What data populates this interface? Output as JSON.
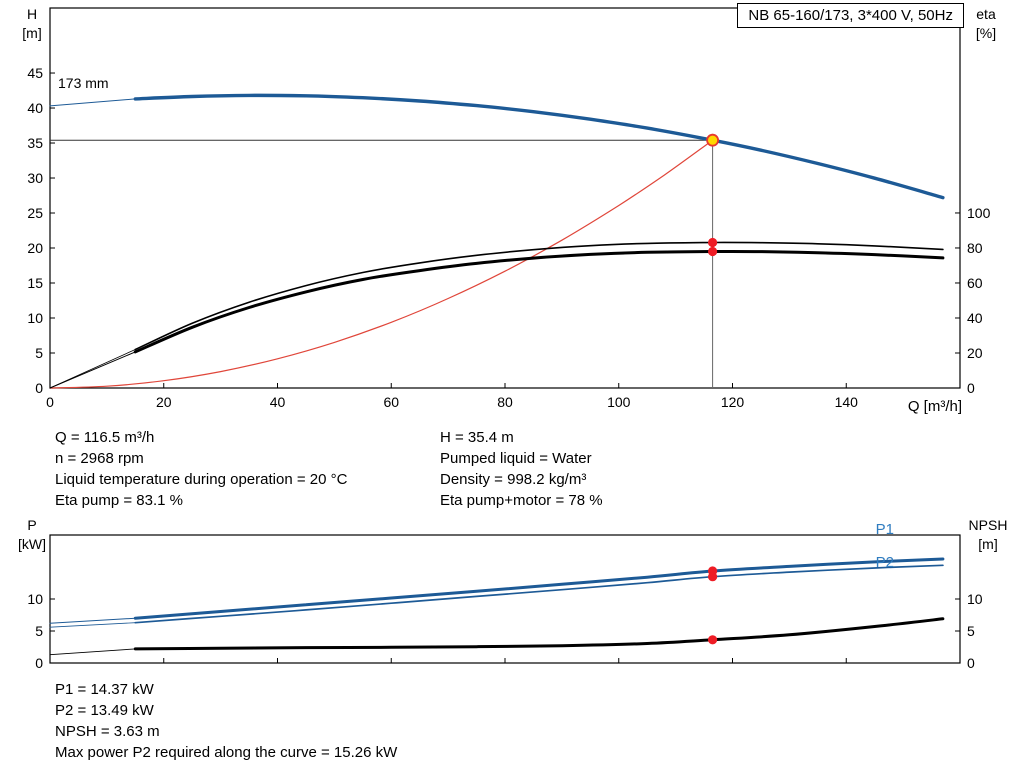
{
  "header": {
    "title_box": "NB 65-160/173, 3*400 V, 50Hz"
  },
  "axes_labels": {
    "h": "H",
    "h_unit": "[m]",
    "eta": "eta",
    "eta_unit": "[%]",
    "p": "P",
    "p_unit": "[kW]",
    "npsh": "NPSH",
    "npsh_unit": "[m]",
    "q_axis": "Q [m³/h]"
  },
  "curve_labels": {
    "impeller": "173 mm",
    "p1": "P1",
    "p2": "P2"
  },
  "info": {
    "left": [
      "Q = 116.5 m³/h",
      "n = 2968 rpm",
      "Liquid temperature during operation = 20 °C",
      "Eta pump = 83.1 %"
    ],
    "right": [
      "H = 35.4 m",
      "Pumped liquid = Water",
      "Density = 998.2 kg/m³",
      "Eta pump+motor = 78 %"
    ]
  },
  "results": [
    "P1 = 14.37 kW",
    "P2 = 13.49 kW",
    "NPSH = 3.63 m",
    "Max power P2 required along the curve = 15.26 kW"
  ],
  "colors": {
    "curve_blue": "#1d5a96",
    "label_blue": "#2f7cc0",
    "marker_red": "#ee1c25",
    "system_red": "#e0463a",
    "duty_yellow": "#ffd800"
  },
  "chart_data": [
    {
      "type": "line",
      "title": "NB 65-160/173, 3*400 V, 50Hz",
      "xlabel": "Q [m³/h]",
      "x_range": [
        0,
        160
      ],
      "x_ticks": [
        0,
        20,
        40,
        60,
        80,
        100,
        120,
        140
      ],
      "left_axis": {
        "label": "H [m]",
        "range": [
          0,
          54.29
        ],
        "ticks": [
          0,
          5,
          10,
          15,
          20,
          25,
          30,
          35,
          40,
          45
        ]
      },
      "right_axis": {
        "label": "eta [%]",
        "range": [
          0,
          217.1
        ],
        "ticks": [
          0,
          20,
          40,
          60,
          80,
          100
        ]
      },
      "duty_point": {
        "q": 116.5,
        "h": 35.4,
        "eta_pump": 83.1,
        "eta_pump_motor": 78
      },
      "guides": [
        {
          "name": "duty-head-guide-line",
          "axis": "left",
          "color": "#333333",
          "width": 1,
          "points": [
            [
              0,
              35.4
            ],
            [
              116.5,
              35.4
            ]
          ]
        },
        {
          "name": "duty-flow-guide-line",
          "axis": "left",
          "color": "#666666",
          "width": 1,
          "points": [
            [
              116.5,
              0
            ],
            [
              116.5,
              36.3
            ]
          ]
        }
      ],
      "series": [
        {
          "name": "pump-curve-lead",
          "axis": "left",
          "color": "#1d5a96",
          "width": 1,
          "smooth": false,
          "points": [
            [
              0,
              40.3
            ],
            [
              15,
              41.3
            ]
          ]
        },
        {
          "name": "pump-curve-173mm",
          "axis": "left",
          "color": "#1d5a96",
          "width": 3.4,
          "smooth": true,
          "points": [
            [
              15,
              41.3
            ],
            [
              25,
              41.65
            ],
            [
              35,
              41.8
            ],
            [
              45,
              41.74
            ],
            [
              55,
              41.47
            ],
            [
              65,
              41.0
            ],
            [
              75,
              40.34
            ],
            [
              85,
              39.47
            ],
            [
              95,
              38.4
            ],
            [
              105,
              37.13
            ],
            [
              116.5,
              35.4
            ],
            [
              125,
              33.97
            ],
            [
              135,
              32.07
            ],
            [
              145,
              29.98
            ],
            [
              157,
              27.2
            ]
          ]
        },
        {
          "name": "system-curve",
          "axis": "left",
          "color": "#e0463a",
          "width": 1.2,
          "smooth": true,
          "points": [
            [
              0,
              0
            ],
            [
              10,
              0.26
            ],
            [
              20,
              1.04
            ],
            [
              30,
              2.35
            ],
            [
              40,
              4.17
            ],
            [
              50,
              6.52
            ],
            [
              60,
              9.39
            ],
            [
              70,
              12.78
            ],
            [
              80,
              16.69
            ],
            [
              90,
              21.12
            ],
            [
              100,
              26.08
            ],
            [
              108,
              30.42
            ],
            [
              116.5,
              35.4
            ]
          ]
        },
        {
          "name": "eta-pump-lead",
          "axis": "right",
          "color": "#000000",
          "width": 0.8,
          "smooth": false,
          "points": [
            [
              0,
              0
            ],
            [
              15,
              22
            ]
          ]
        },
        {
          "name": "eta-pump-curve",
          "axis": "right",
          "color": "#000000",
          "width": 1.6,
          "smooth": true,
          "points": [
            [
              15,
              22
            ],
            [
              25,
              37
            ],
            [
              35,
              49
            ],
            [
              45,
              58.5
            ],
            [
              55,
              66
            ],
            [
              65,
              71.5
            ],
            [
              75,
              75.8
            ],
            [
              85,
              79
            ],
            [
              95,
              81.3
            ],
            [
              105,
              82.6
            ],
            [
              116.5,
              83.1
            ],
            [
              125,
              83
            ],
            [
              135,
              82.4
            ],
            [
              145,
              81.2
            ],
            [
              157,
              79.2
            ]
          ]
        },
        {
          "name": "eta-pump-motor-lead",
          "axis": "right",
          "color": "#000000",
          "width": 1,
          "smooth": false,
          "points": [
            [
              0,
              0
            ],
            [
              15,
              20.6
            ]
          ]
        },
        {
          "name": "eta-pump-motor-curve",
          "axis": "right",
          "color": "#000000",
          "width": 3,
          "smooth": true,
          "points": [
            [
              15,
              20.6
            ],
            [
              25,
              34.7
            ],
            [
              35,
              46
            ],
            [
              45,
              54.9
            ],
            [
              55,
              62
            ],
            [
              65,
              67.1
            ],
            [
              75,
              71.2
            ],
            [
              85,
              74.2
            ],
            [
              95,
              76.3
            ],
            [
              105,
              77.5
            ],
            [
              116.5,
              78
            ],
            [
              125,
              77.9
            ],
            [
              135,
              77.3
            ],
            [
              145,
              76.2
            ],
            [
              157,
              74.3
            ]
          ]
        }
      ],
      "markers": [
        {
          "name": "duty-point-marker",
          "x": 116.5,
          "y": 35.4,
          "axis": "left",
          "r": 5.5,
          "fill": "#ffd800",
          "stroke": "#e8392f",
          "stroke_width": 1.8,
          "interactable": true
        },
        {
          "name": "eta-pump-point",
          "x": 116.5,
          "y": 83.1,
          "axis": "right",
          "r": 4.6,
          "fill": "#ee1c25"
        },
        {
          "name": "eta-pump-motor-point",
          "x": 116.5,
          "y": 78,
          "axis": "right",
          "r": 4.6,
          "fill": "#ee1c25"
        }
      ]
    },
    {
      "type": "line",
      "title": "",
      "xlabel": "",
      "x_range": [
        0,
        160
      ],
      "x_ticks": [
        0,
        20,
        40,
        60,
        80,
        100,
        120,
        140
      ],
      "left_axis": {
        "label": "P [kW]",
        "range": [
          0,
          20
        ],
        "ticks": [
          0,
          5,
          10
        ]
      },
      "right_axis": {
        "label": "NPSH [m]",
        "range": [
          0,
          20
        ],
        "ticks": [
          0,
          5,
          10
        ]
      },
      "duty_point": {
        "q": 116.5,
        "p1": 14.37,
        "p2": 13.49,
        "npsh": 3.63
      },
      "guides": [],
      "series": [
        {
          "name": "p1-lead",
          "axis": "left",
          "color": "#1d5a96",
          "width": 1,
          "smooth": false,
          "points": [
            [
              0,
              6.2
            ],
            [
              15,
              7.0
            ]
          ]
        },
        {
          "name": "p1-curve",
          "axis": "left",
          "color": "#1d5a96",
          "width": 3,
          "smooth": true,
          "points": [
            [
              15,
              7.0
            ],
            [
              30,
              8.05
            ],
            [
              45,
              9.1
            ],
            [
              60,
              10.15
            ],
            [
              75,
              11.2
            ],
            [
              90,
              12.3
            ],
            [
              105,
              13.4
            ],
            [
              116.5,
              14.37
            ],
            [
              130,
              15.1
            ],
            [
              145,
              15.8
            ],
            [
              157,
              16.25
            ]
          ]
        },
        {
          "name": "p2-lead",
          "axis": "left",
          "color": "#1d5a96",
          "width": 0.8,
          "smooth": false,
          "points": [
            [
              0,
              5.6
            ],
            [
              15,
              6.3
            ]
          ]
        },
        {
          "name": "p2-curve",
          "axis": "left",
          "color": "#1d5a96",
          "width": 1.7,
          "smooth": true,
          "points": [
            [
              15,
              6.3
            ],
            [
              30,
              7.3
            ],
            [
              45,
              8.3
            ],
            [
              60,
              9.35
            ],
            [
              75,
              10.4
            ],
            [
              90,
              11.45
            ],
            [
              105,
              12.55
            ],
            [
              116.5,
              13.49
            ],
            [
              130,
              14.2
            ],
            [
              145,
              14.85
            ],
            [
              157,
              15.26
            ]
          ]
        },
        {
          "name": "npsh-lead",
          "axis": "right",
          "color": "#000000",
          "width": 0.9,
          "smooth": false,
          "points": [
            [
              0,
              1.3
            ],
            [
              15,
              2.2
            ]
          ]
        },
        {
          "name": "npsh-curve",
          "axis": "right",
          "color": "#000000",
          "width": 3,
          "smooth": true,
          "points": [
            [
              15,
              2.2
            ],
            [
              30,
              2.3
            ],
            [
              45,
              2.4
            ],
            [
              60,
              2.45
            ],
            [
              75,
              2.55
            ],
            [
              90,
              2.7
            ],
            [
              105,
              3.05
            ],
            [
              116.5,
              3.63
            ],
            [
              130,
              4.4
            ],
            [
              145,
              5.7
            ],
            [
              157,
              6.9
            ]
          ]
        }
      ],
      "markers": [
        {
          "name": "p1-point",
          "x": 116.5,
          "y": 14.37,
          "axis": "left",
          "r": 4.6,
          "fill": "#ee1c25"
        },
        {
          "name": "p2-point",
          "x": 116.5,
          "y": 13.49,
          "axis": "left",
          "r": 4.6,
          "fill": "#ee1c25"
        },
        {
          "name": "npsh-point",
          "x": 116.5,
          "y": 3.63,
          "axis": "right",
          "r": 4.6,
          "fill": "#ee1c25"
        }
      ]
    }
  ]
}
